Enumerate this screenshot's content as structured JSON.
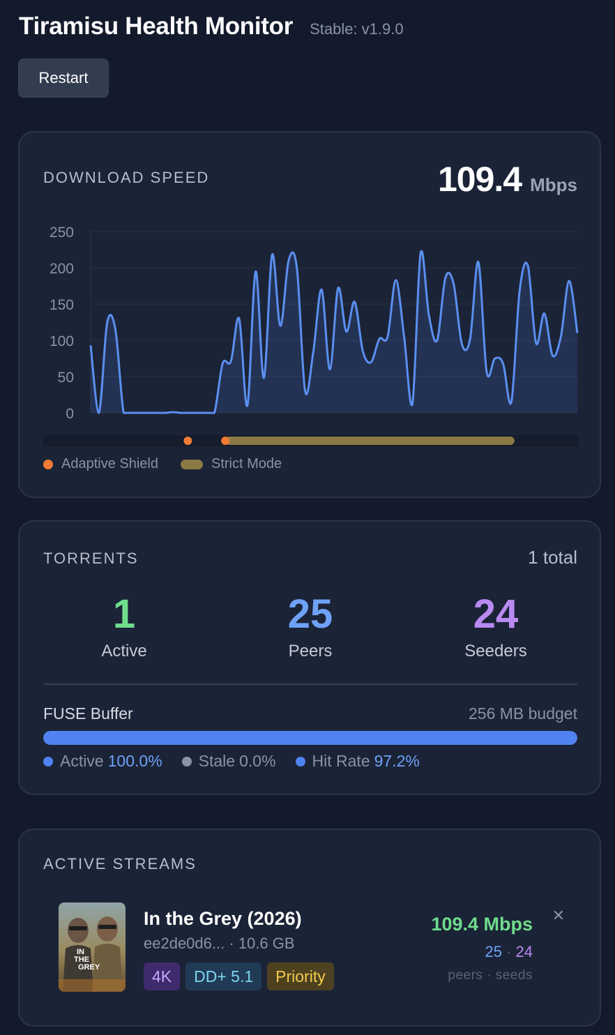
{
  "header": {
    "title": "Tiramisu Health Monitor",
    "version": "Stable: v1.9.0"
  },
  "toolbar": {
    "restart_label": "Restart"
  },
  "download": {
    "label": "DOWNLOAD SPEED",
    "value": "109.4",
    "unit": "Mbps",
    "legend": [
      {
        "name": "Adaptive Shield",
        "color": "#f07b34"
      },
      {
        "name": "Strict Mode",
        "color": "#8c7a44"
      }
    ]
  },
  "chart_data": {
    "type": "area",
    "xlabel": "",
    "ylabel": "",
    "ylim": [
      0,
      250
    ],
    "yticks": [
      "250",
      "200",
      "150",
      "100",
      "50",
      "0"
    ],
    "grid": true,
    "color": "#4f83ef",
    "values": [
      93,
      0,
      124,
      115,
      0,
      0,
      0,
      0,
      0,
      0,
      1,
      0,
      0,
      0,
      0,
      0,
      68,
      71,
      130,
      10,
      195,
      48,
      218,
      120,
      210,
      200,
      30,
      85,
      170,
      60,
      172,
      112,
      153,
      85,
      70,
      102,
      105,
      183,
      105,
      12,
      220,
      135,
      100,
      186,
      178,
      95,
      102,
      208,
      57,
      75,
      68,
      15,
      168,
      203,
      96,
      137,
      79,
      105,
      182,
      110
    ],
    "events": [
      {
        "name": "Adaptive Shield",
        "type": "marker",
        "at": 0.27
      },
      {
        "name": "Adaptive Shield",
        "type": "marker",
        "at": 0.34
      },
      {
        "name": "Strict Mode",
        "type": "range",
        "from": 0.34,
        "to": 0.88
      }
    ]
  },
  "torrents": {
    "label": "TORRENTS",
    "total": "1 total",
    "stats": [
      {
        "value": "1",
        "label": "Active",
        "color": "#6fdc8c"
      },
      {
        "value": "25",
        "label": "Peers",
        "color": "#6ea2f7"
      },
      {
        "value": "24",
        "label": "Seeders",
        "color": "#b98af2"
      }
    ],
    "fuse": {
      "title": "FUSE Buffer",
      "budget": "256 MB budget",
      "fill_percent": 100,
      "active_label": "Active",
      "active_value": "100.0%",
      "stale_label": "Stale",
      "stale_value": "0.0%",
      "hit_label": "Hit Rate",
      "hit_value": "97.2%"
    }
  },
  "streams": {
    "label": "ACTIVE STREAMS",
    "items": [
      {
        "title": "In the Grey (2026)",
        "hash": "ee2de0d6...",
        "size": "10.6 GB",
        "poster_text": "IN THE GREY",
        "tags": [
          "4K",
          "DD+ 5.1",
          "Priority"
        ],
        "speed": "109.4 Mbps",
        "peers": "25",
        "seeds": "24",
        "peers_label": "peers · seeds"
      }
    ]
  }
}
